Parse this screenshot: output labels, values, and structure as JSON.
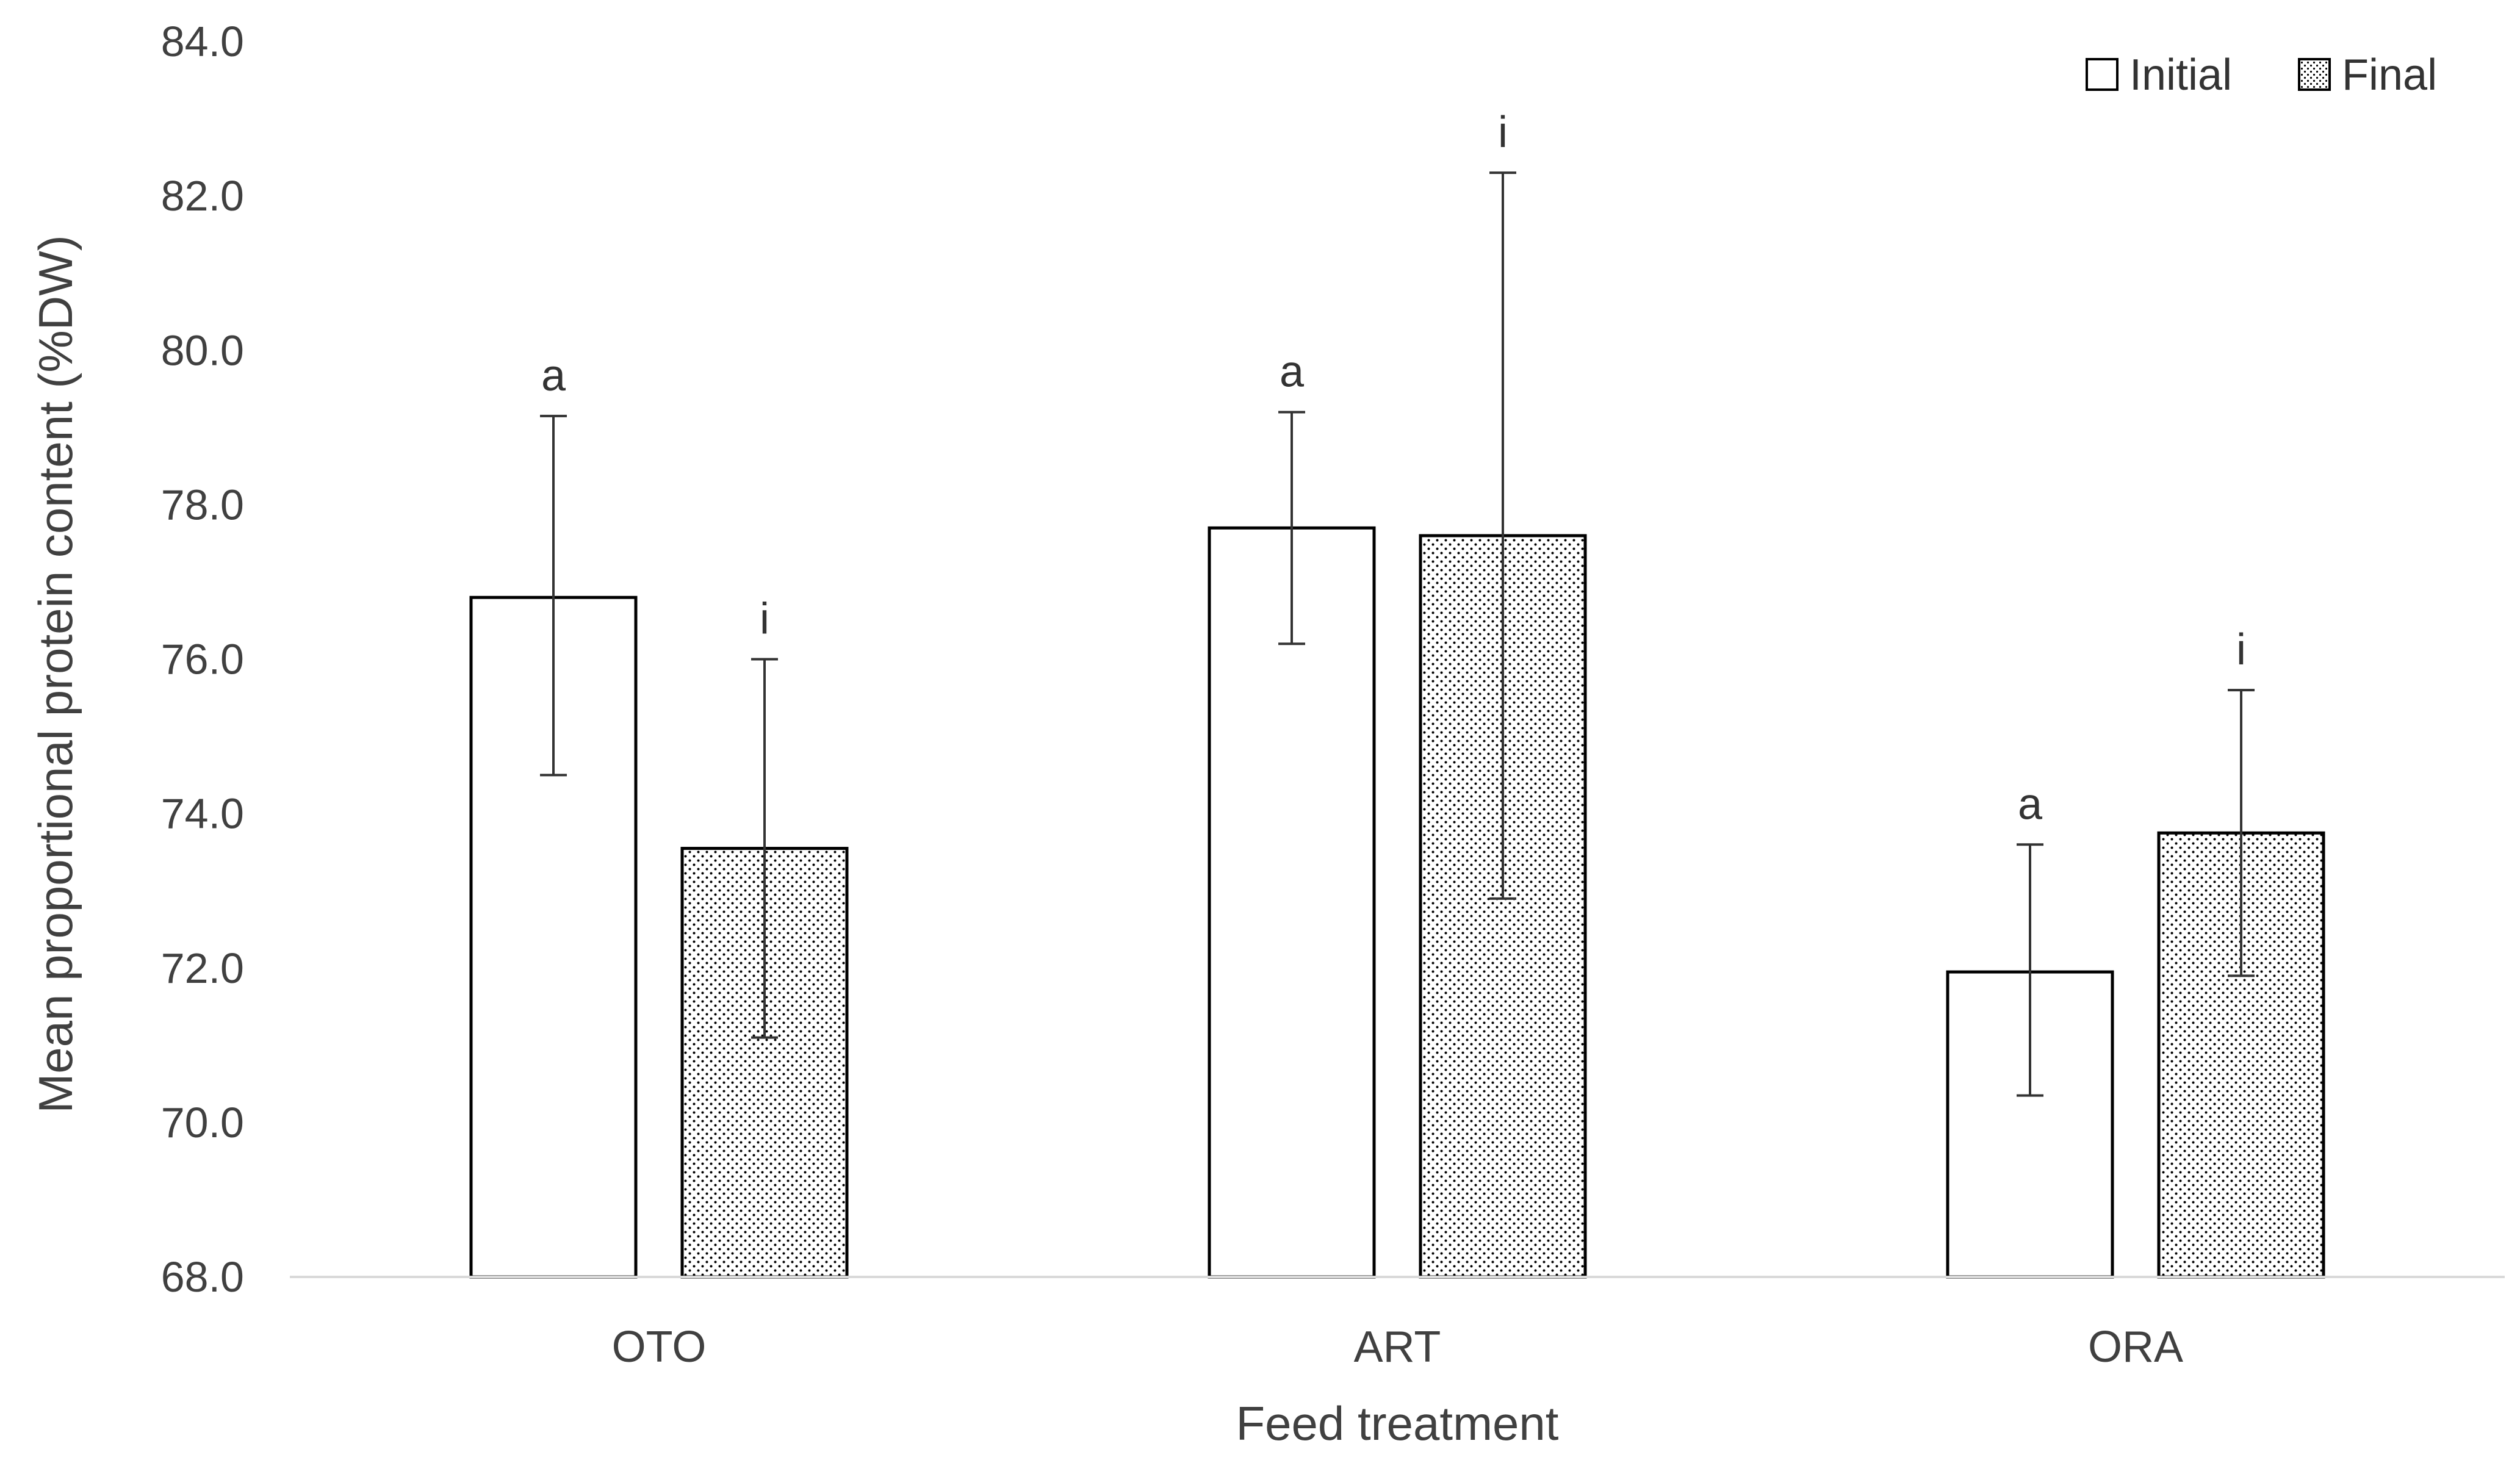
{
  "chart_data": {
    "type": "bar",
    "title": "",
    "xlabel": "Feed treatment",
    "ylabel": "Mean proportional protein content (%DW)",
    "ylim": [
      68.0,
      84.0
    ],
    "yticks": [
      "68.0",
      "70.0",
      "72.0",
      "74.0",
      "76.0",
      "78.0",
      "80.0",
      "82.0",
      "84.0"
    ],
    "ytick_values": [
      68,
      70,
      72,
      74,
      76,
      78,
      80,
      82,
      84
    ],
    "categories": [
      "OTO",
      "ART",
      "ORA"
    ],
    "series": [
      {
        "name": "Initial",
        "pattern": "none",
        "values": [
          76.8,
          77.7,
          71.95
        ],
        "error_low": [
          74.5,
          76.2,
          70.35
        ],
        "error_high": [
          79.15,
          79.2,
          73.6
        ],
        "labels": [
          "a",
          "a",
          "a"
        ]
      },
      {
        "name": "Final",
        "pattern": "dots",
        "values": [
          73.55,
          77.6,
          73.75
        ],
        "error_low": [
          71.1,
          72.9,
          71.9
        ],
        "error_high": [
          76.0,
          82.3,
          75.6
        ],
        "labels": [
          "i",
          "i",
          "i"
        ]
      }
    ],
    "legend_position": "top-right",
    "grid": false,
    "colors": {
      "bar_fill": "#ffffff",
      "bar_stroke": "#000000",
      "axis": "#d9d9d9",
      "text": "#404040",
      "dot": "#000000"
    }
  }
}
